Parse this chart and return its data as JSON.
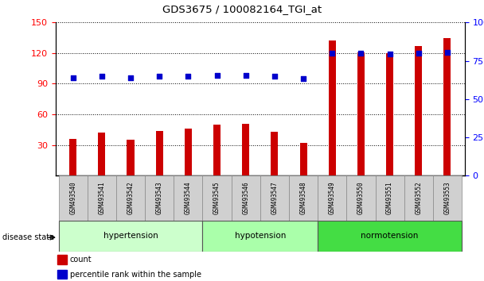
{
  "title": "GDS3675 / 100082164_TGI_at",
  "samples": [
    "GSM493540",
    "GSM493541",
    "GSM493542",
    "GSM493543",
    "GSM493544",
    "GSM493545",
    "GSM493546",
    "GSM493547",
    "GSM493548",
    "GSM493549",
    "GSM493550",
    "GSM493551",
    "GSM493552",
    "GSM493553"
  ],
  "counts": [
    36,
    42,
    35,
    44,
    46,
    50,
    51,
    43,
    32,
    132,
    121,
    120,
    127,
    135
  ],
  "percentiles_left_scale": [
    96,
    97,
    96,
    97,
    97,
    98,
    98,
    97,
    95,
    120,
    120,
    119,
    120,
    121
  ],
  "groups": [
    {
      "name": "hypertension",
      "indices": [
        0,
        1,
        2,
        3,
        4
      ],
      "color": "#ccffcc"
    },
    {
      "name": "hypotension",
      "indices": [
        5,
        6,
        7,
        8
      ],
      "color": "#aaffaa"
    },
    {
      "name": "normotension",
      "indices": [
        9,
        10,
        11,
        12,
        13
      ],
      "color": "#44dd44"
    }
  ],
  "bar_color": "#cc0000",
  "dot_color": "#0000cc",
  "left_ylim": [
    0,
    150
  ],
  "left_yticks": [
    30,
    60,
    90,
    120,
    150
  ],
  "right_ylim": [
    0,
    100
  ],
  "right_yticks": [
    0,
    25,
    50,
    75,
    100
  ],
  "right_yticklabels": [
    "0",
    "25",
    "50",
    "75",
    "100%"
  ],
  "bar_width": 0.25
}
